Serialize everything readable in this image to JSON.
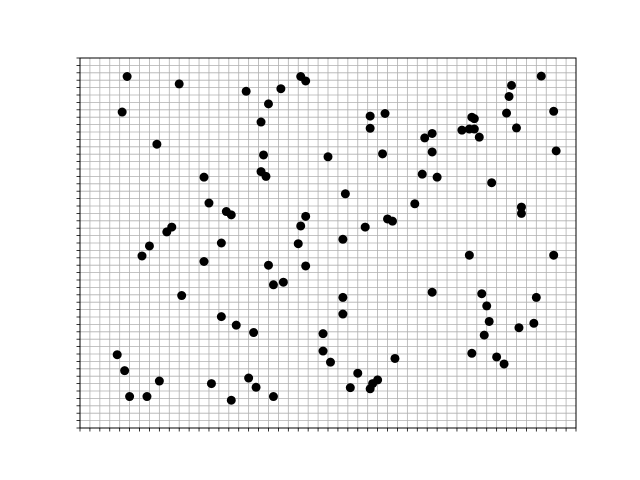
{
  "chart_data": {
    "type": "scatter",
    "title": "",
    "xlabel": "",
    "ylabel": "",
    "xlim": [
      0,
      100
    ],
    "ylim": [
      0,
      100
    ],
    "grid": true,
    "minor_ticks_x": 50,
    "minor_ticks_y": 50,
    "tick_labels": false,
    "marker_color": "#000000",
    "grid_color": "#b0b0b0",
    "series": [
      {
        "name": "points",
        "points": [
          [
            9.5,
            95.0
          ],
          [
            8.5,
            85.4
          ],
          [
            20.0,
            93.0
          ],
          [
            33.5,
            91.0
          ],
          [
            40.5,
            91.7
          ],
          [
            44.5,
            95.0
          ],
          [
            45.5,
            93.8
          ],
          [
            38.0,
            87.6
          ],
          [
            36.5,
            82.7
          ],
          [
            15.5,
            76.7
          ],
          [
            25.0,
            67.8
          ],
          [
            37.0,
            73.8
          ],
          [
            36.5,
            69.3
          ],
          [
            37.5,
            68.0
          ],
          [
            50.0,
            73.3
          ],
          [
            26.0,
            60.8
          ],
          [
            29.5,
            58.5
          ],
          [
            30.5,
            57.6
          ],
          [
            18.5,
            54.3
          ],
          [
            17.5,
            53.0
          ],
          [
            14.0,
            49.2
          ],
          [
            12.5,
            46.5
          ],
          [
            28.5,
            50.0
          ],
          [
            25.0,
            45.0
          ],
          [
            20.5,
            35.8
          ],
          [
            38.0,
            44.0
          ],
          [
            39.0,
            38.7
          ],
          [
            41.0,
            39.4
          ],
          [
            44.0,
            49.8
          ],
          [
            44.5,
            54.6
          ],
          [
            45.5,
            57.2
          ],
          [
            45.5,
            43.8
          ],
          [
            53.5,
            63.3
          ],
          [
            53.0,
            51.0
          ],
          [
            57.5,
            54.3
          ],
          [
            58.5,
            84.3
          ],
          [
            58.5,
            81.0
          ],
          [
            61.5,
            85.0
          ],
          [
            61.0,
            74.1
          ],
          [
            62.0,
            56.5
          ],
          [
            63.0,
            55.9
          ],
          [
            67.5,
            60.6
          ],
          [
            69.0,
            68.6
          ],
          [
            69.5,
            78.4
          ],
          [
            71.0,
            79.6
          ],
          [
            71.0,
            74.6
          ],
          [
            72.0,
            67.8
          ],
          [
            77.0,
            80.5
          ],
          [
            79.5,
            83.6
          ],
          [
            79.5,
            80.8
          ],
          [
            80.5,
            78.6
          ],
          [
            79.0,
            84.0
          ],
          [
            78.5,
            80.8
          ],
          [
            83.0,
            66.3
          ],
          [
            86.0,
            85.1
          ],
          [
            86.5,
            89.6
          ],
          [
            87.0,
            92.6
          ],
          [
            88.0,
            81.1
          ],
          [
            93.0,
            95.1
          ],
          [
            95.5,
            85.6
          ],
          [
            96.0,
            74.9
          ],
          [
            89.0,
            59.7
          ],
          [
            89.0,
            58.0
          ],
          [
            78.5,
            46.7
          ],
          [
            71.0,
            36.7
          ],
          [
            81.0,
            36.3
          ],
          [
            82.0,
            33.0
          ],
          [
            82.5,
            28.8
          ],
          [
            81.5,
            25.1
          ],
          [
            88.5,
            27.1
          ],
          [
            91.5,
            28.3
          ],
          [
            92.0,
            35.3
          ],
          [
            95.5,
            46.7
          ],
          [
            79.0,
            20.2
          ],
          [
            84.0,
            19.2
          ],
          [
            85.5,
            17.3
          ],
          [
            53.0,
            35.3
          ],
          [
            53.0,
            30.8
          ],
          [
            49.0,
            25.5
          ],
          [
            49.0,
            20.8
          ],
          [
            50.5,
            17.8
          ],
          [
            56.0,
            14.8
          ],
          [
            54.5,
            10.9
          ],
          [
            58.5,
            10.6
          ],
          [
            59.0,
            12.0
          ],
          [
            60.0,
            13.0
          ],
          [
            63.5,
            18.8
          ],
          [
            7.5,
            19.8
          ],
          [
            9.0,
            15.5
          ],
          [
            10.0,
            8.5
          ],
          [
            13.5,
            8.5
          ],
          [
            16.0,
            12.7
          ],
          [
            26.5,
            12.0
          ],
          [
            30.5,
            7.5
          ],
          [
            34.0,
            13.5
          ],
          [
            35.5,
            11.0
          ],
          [
            39.0,
            8.5
          ],
          [
            28.5,
            30.1
          ],
          [
            31.5,
            27.8
          ],
          [
            35.0,
            25.8
          ]
        ]
      }
    ]
  }
}
